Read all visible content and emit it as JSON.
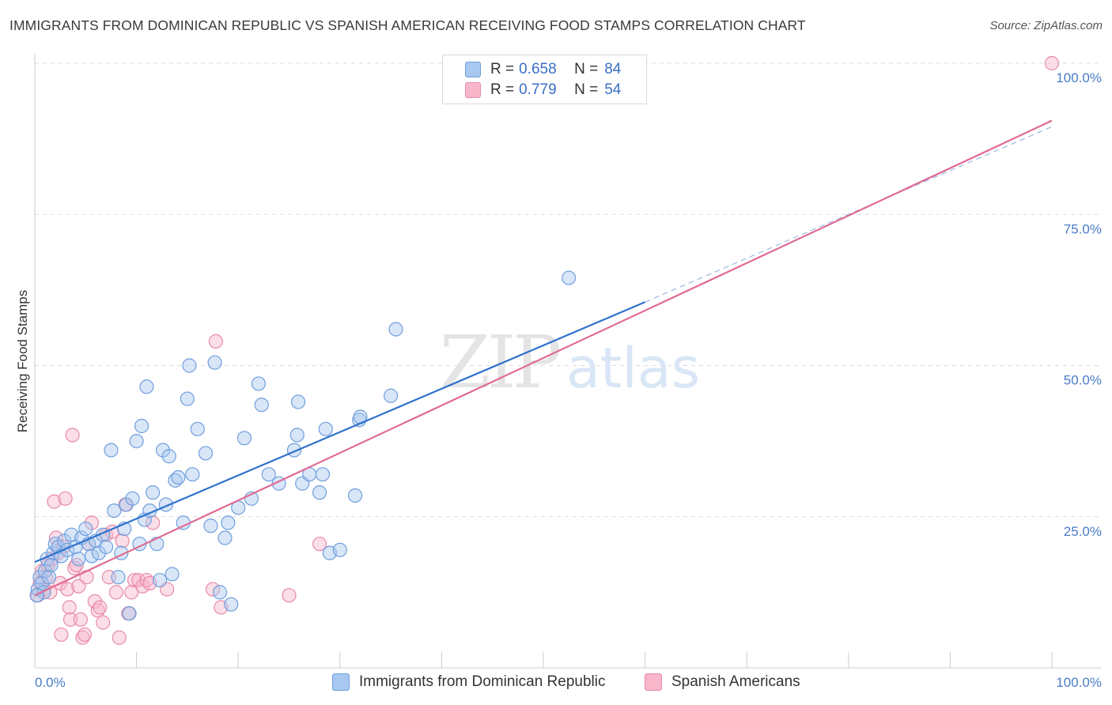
{
  "title": "IMMIGRANTS FROM DOMINICAN REPUBLIC VS SPANISH AMERICAN RECEIVING FOOD STAMPS CORRELATION CHART",
  "source": "Source: ZipAtlas.com",
  "watermark": {
    "part1": "ZIP",
    "part2": "atlas"
  },
  "legend": {
    "rows": [
      {
        "r_label": "R =",
        "r_value": "0.658",
        "n_label": "N =",
        "n_value": "84",
        "color": "#a8c8f0"
      },
      {
        "r_label": "R =",
        "r_value": "0.779",
        "n_label": "N =",
        "n_value": "54",
        "color": "#f7b6ca"
      }
    ]
  },
  "colors": {
    "blue_fill": "#a8c8f0",
    "blue_stroke": "#6f9fdc",
    "blue_line": "#2f72cc",
    "pink_fill": "#f7b6ca",
    "pink_stroke": "#e88aa9",
    "pink_line": "#e06b94",
    "grid": "#dcdcdc",
    "tick_label": "#4a7cc7"
  },
  "chart_data": {
    "type": "scatter",
    "ylabel": "Receiving Food Stamps",
    "xlim": [
      0,
      100
    ],
    "ylim": [
      0,
      100
    ],
    "x_tick_labels": [
      "0.0%",
      "100.0%"
    ],
    "y_ticks": [
      25,
      50,
      75,
      100
    ],
    "y_tick_labels": [
      "25.0%",
      "50.0%",
      "75.0%",
      "100.0%"
    ],
    "grid": true,
    "series": [
      {
        "name": "Immigrants from Dominican Republic",
        "color": "#a8c8f0",
        "points": [
          [
            0.3,
            13
          ],
          [
            0.5,
            15
          ],
          [
            0.7,
            14
          ],
          [
            0.9,
            12.5
          ],
          [
            1.0,
            16
          ],
          [
            1.2,
            18
          ],
          [
            1.4,
            15
          ],
          [
            1.6,
            17
          ],
          [
            1.8,
            19
          ],
          [
            2.0,
            20.5
          ],
          [
            2.3,
            20
          ],
          [
            2.6,
            18.5
          ],
          [
            2.9,
            21
          ],
          [
            3.2,
            19.5
          ],
          [
            3.6,
            22
          ],
          [
            4.0,
            20
          ],
          [
            4.3,
            18
          ],
          [
            4.6,
            21.5
          ],
          [
            5.0,
            23
          ],
          [
            5.3,
            20.5
          ],
          [
            5.6,
            18.5
          ],
          [
            6.0,
            21
          ],
          [
            6.3,
            19
          ],
          [
            6.7,
            22
          ],
          [
            7.0,
            20
          ],
          [
            7.5,
            36
          ],
          [
            7.8,
            26
          ],
          [
            8.2,
            15
          ],
          [
            8.5,
            19
          ],
          [
            8.8,
            23
          ],
          [
            9.0,
            27
          ],
          [
            9.3,
            9
          ],
          [
            9.6,
            28
          ],
          [
            10.0,
            37.5
          ],
          [
            10.3,
            20.5
          ],
          [
            10.5,
            40
          ],
          [
            10.8,
            24.5
          ],
          [
            11.0,
            46.5
          ],
          [
            11.3,
            26
          ],
          [
            11.6,
            29
          ],
          [
            12.0,
            20.5
          ],
          [
            12.3,
            14.5
          ],
          [
            12.6,
            36
          ],
          [
            12.9,
            27
          ],
          [
            13.2,
            35
          ],
          [
            13.5,
            15.5
          ],
          [
            13.8,
            31
          ],
          [
            14.1,
            31.5
          ],
          [
            14.6,
            24
          ],
          [
            15.0,
            44.5
          ],
          [
            15.5,
            32
          ],
          [
            15.2,
            50
          ],
          [
            16.0,
            39.5
          ],
          [
            16.8,
            35.5
          ],
          [
            17.3,
            23.5
          ],
          [
            17.7,
            50.5
          ],
          [
            18.2,
            12.5
          ],
          [
            18.7,
            21.5
          ],
          [
            19.3,
            10.5
          ],
          [
            19.0,
            24
          ],
          [
            20.0,
            26.5
          ],
          [
            20.6,
            38
          ],
          [
            21.3,
            28
          ],
          [
            22.0,
            47
          ],
          [
            22.3,
            43.5
          ],
          [
            23.0,
            32
          ],
          [
            24.0,
            30.5
          ],
          [
            25.5,
            36
          ],
          [
            25.8,
            38.5
          ],
          [
            25.9,
            44
          ],
          [
            26.3,
            30.5
          ],
          [
            27.0,
            32
          ],
          [
            28.0,
            29
          ],
          [
            28.3,
            32
          ],
          [
            28.6,
            39.5
          ],
          [
            29.0,
            19
          ],
          [
            30.0,
            19.5
          ],
          [
            31.5,
            28.5
          ],
          [
            31.9,
            41
          ],
          [
            32.0,
            41.5
          ],
          [
            35.0,
            45
          ],
          [
            35.5,
            56
          ],
          [
            52.5,
            64.5
          ],
          [
            0.2,
            12
          ]
        ]
      },
      {
        "name": "Spanish Americans",
        "color": "#f7b6ca",
        "points": [
          [
            0.3,
            12
          ],
          [
            0.5,
            14
          ],
          [
            0.7,
            16
          ],
          [
            0.9,
            13
          ],
          [
            1.1,
            15
          ],
          [
            1.3,
            17
          ],
          [
            1.5,
            12.5
          ],
          [
            1.7,
            18
          ],
          [
            1.9,
            27.5
          ],
          [
            2.1,
            21.5
          ],
          [
            2.3,
            19
          ],
          [
            2.5,
            14
          ],
          [
            2.6,
            5.5
          ],
          [
            2.8,
            20
          ],
          [
            3.0,
            28
          ],
          [
            3.2,
            13
          ],
          [
            3.4,
            10
          ],
          [
            3.5,
            8
          ],
          [
            3.7,
            38.5
          ],
          [
            3.9,
            16.5
          ],
          [
            4.1,
            17
          ],
          [
            4.3,
            13.5
          ],
          [
            4.5,
            8
          ],
          [
            4.7,
            5
          ],
          [
            4.9,
            5.5
          ],
          [
            5.1,
            15
          ],
          [
            5.3,
            20.5
          ],
          [
            5.6,
            24
          ],
          [
            5.9,
            11
          ],
          [
            6.2,
            9.5
          ],
          [
            6.4,
            10
          ],
          [
            6.7,
            7.5
          ],
          [
            7.0,
            22
          ],
          [
            7.3,
            15
          ],
          [
            7.6,
            22.5
          ],
          [
            8.0,
            12.5
          ],
          [
            8.3,
            5
          ],
          [
            8.6,
            21
          ],
          [
            8.9,
            27
          ],
          [
            9.2,
            9
          ],
          [
            9.5,
            12.5
          ],
          [
            9.8,
            14.5
          ],
          [
            10.2,
            14.5
          ],
          [
            10.6,
            13.5
          ],
          [
            11.0,
            14.5
          ],
          [
            11.3,
            14
          ],
          [
            11.6,
            24
          ],
          [
            13.0,
            13
          ],
          [
            17.5,
            13
          ],
          [
            17.8,
            54
          ],
          [
            18.3,
            10
          ],
          [
            25.0,
            12
          ],
          [
            28.0,
            20.5
          ],
          [
            100,
            100
          ]
        ]
      }
    ],
    "trendlines": [
      {
        "series": "Immigrants from Dominican Republic",
        "x0": 0,
        "y0": 17.5,
        "x1": 60,
        "y1": 60.5,
        "dashed_extension_to_x": 100,
        "dashed_extension_y": 89.5
      },
      {
        "series": "Spanish Americans",
        "x0": 0,
        "y0": 12,
        "x1": 100,
        "y1": 90.5
      }
    ]
  }
}
